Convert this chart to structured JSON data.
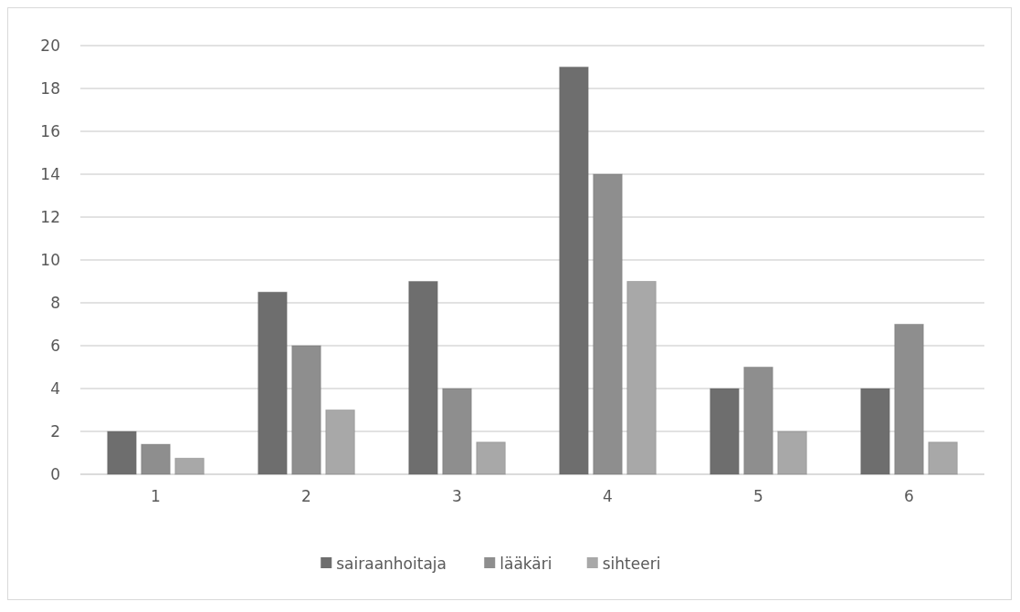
{
  "chart_data": {
    "type": "bar",
    "categories": [
      "1",
      "2",
      "3",
      "4",
      "5",
      "6"
    ],
    "series": [
      {
        "name": "sairaanhoitaja",
        "color": "#6e6e6e",
        "values": [
          2,
          8.5,
          9,
          19,
          4,
          4
        ]
      },
      {
        "name": "lääkäri",
        "color": "#8e8e8e",
        "values": [
          1.4,
          6,
          4,
          14,
          5,
          7
        ]
      },
      {
        "name": "sihteeri",
        "color": "#a8a8a8",
        "values": [
          0.75,
          3,
          1.5,
          9,
          2,
          1.5
        ]
      }
    ],
    "ylim": [
      0,
      20
    ],
    "yticks": [
      0,
      2,
      4,
      6,
      8,
      10,
      12,
      14,
      16,
      18,
      20
    ],
    "grid": "y",
    "legend": "bottom"
  }
}
